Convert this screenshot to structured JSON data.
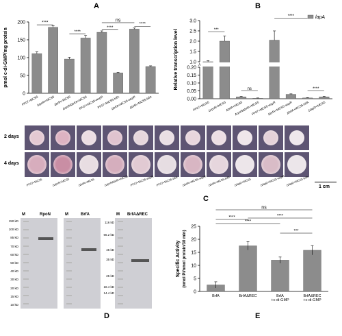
{
  "panels": {
    "A": "A",
    "B": "B",
    "C": "C",
    "D": "D",
    "E": "E"
  },
  "panelA": {
    "chart_data": {
      "type": "bar",
      "ylabel": "pmol c-di-GMP/mg protein",
      "ylim": [
        0,
        200
      ],
      "yticks": [
        "0",
        "50",
        "100",
        "150",
        "200"
      ],
      "categories": [
        "PF07+MCS5",
        "ΔrpoN+MCS5",
        "ΔbrfA+MCS5",
        "ΔrpoNΔbrfA+MCS5",
        "PF07+MCS5-wspR",
        "PF07+MCS5-bifA",
        "ΔbrfA+MCS5-wspR",
        "ΔbrfA+MCS5-bifA"
      ],
      "values": [
        111,
        185,
        96,
        155,
        171,
        57,
        180,
        75
      ],
      "errors": [
        5,
        4,
        5,
        7,
        4,
        2,
        3,
        2
      ],
      "sig": [
        "****",
        "****",
        "****",
        "ns",
        "****"
      ]
    }
  },
  "panelB": {
    "chart_data": {
      "type": "bar",
      "ylabel": "Relative transcription level",
      "legend": "lapA",
      "yticks_upper": [
        "1.0",
        "1.5",
        "2.0",
        "2.5",
        "3.0"
      ],
      "yticks_lower": [
        "0.00",
        "0.05",
        "0.10",
        "0.15",
        "0.20"
      ],
      "categories": [
        "PF07+MCS5",
        "ΔrpoN+MCS5",
        "ΔbrfA+MCS5",
        "ΔrpoNΔbrfA+MCS5",
        "PF07+MCS5-wspR",
        "ΔbrfA+MCS5-wspR",
        "ΔbrfA+MCS5-bifA",
        "ΔlapD+MCS5"
      ],
      "values": [
        1.0,
        2.0,
        0.012,
        0.003,
        2.05,
        0.028,
        0.005,
        0.012
      ],
      "errors": [
        0.05,
        0.25,
        0.003,
        0.002,
        0.45,
        0.003,
        0.002,
        0.003
      ],
      "sig": [
        "***",
        "ns",
        "****",
        "****"
      ]
    }
  },
  "panelC": {
    "rows": [
      "2 days",
      "4 days"
    ],
    "strains": [
      "PF07+MCS5",
      "ΔrpoN+MCS5",
      "ΔbrfA+MCS5",
      "ΔrpoNΔbrfA+MCS5",
      "PF07+MCS5-wspR",
      "PF07+MCS5-bifA",
      "ΔbrfA+MCS5-wspR",
      "ΔbrfA+MCS5-bifA",
      "ΔlapD+MCS5",
      "ΔlapD+MCS5-wspR",
      "ΔlapD+MCS5-bifA"
    ],
    "scale": "1 cm"
  },
  "panelD": {
    "gels": [
      {
        "header": "RpoN",
        "marker": "M",
        "mw": [
          "150 kD",
          "100 kD",
          "85 kD",
          "70 kD",
          "60 kD",
          "50 kD",
          "40 kD",
          "30 kD",
          "20 kD",
          "15 kD",
          "10 kD"
        ]
      },
      {
        "header": "BrfA",
        "marker": "M",
        "mw": []
      },
      {
        "header": "BrfAΔREC",
        "marker": "M",
        "mw": [
          "116 kD",
          "66.2 kD",
          "45 kD",
          "35 kD",
          "25 kD",
          "18.4 kD",
          "14.4 kD"
        ]
      }
    ]
  },
  "panelE": {
    "chart_data": {
      "type": "bar",
      "ylabel": "Specific Activity (nmol Pi/nmol protein/30 min)",
      "ylim": [
        0,
        25
      ],
      "yticks": [
        "0",
        "5",
        "10",
        "15",
        "20",
        "25"
      ],
      "categories": [
        "BrfA",
        "BrfAΔREC",
        "BrfA +c-di-GMP",
        "BrfAΔREC +c-di-GMP"
      ],
      "values": [
        2.5,
        17.5,
        12.0,
        15.8
      ],
      "errors": [
        1.2,
        1.6,
        1.2,
        1.8
      ],
      "sig": [
        "ns",
        "****",
        "****",
        "****",
        "***"
      ]
    }
  }
}
